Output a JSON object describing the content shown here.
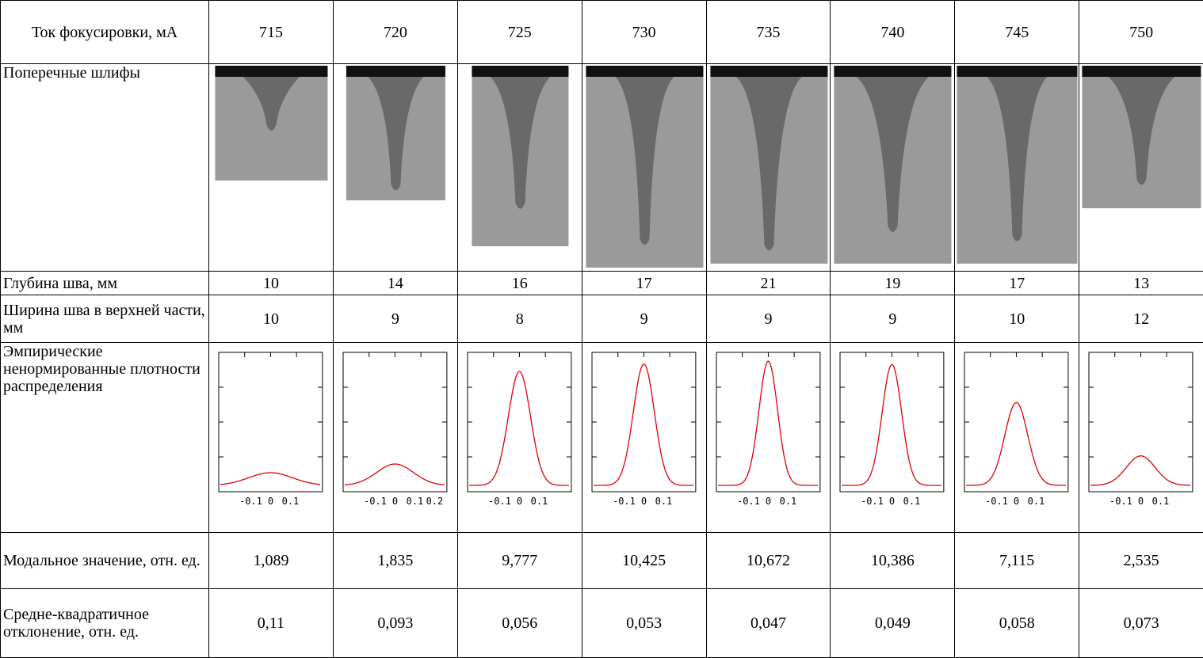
{
  "table": {
    "header_label": "Ток фокусировки, мА",
    "currents": [
      715,
      720,
      725,
      730,
      735,
      740,
      745,
      750
    ],
    "sections_label": "Поперечные шлифы",
    "depth": {
      "label": "Глубина шва, мм",
      "values": [
        10,
        14,
        16,
        17,
        21,
        19,
        17,
        13
      ]
    },
    "width": {
      "label": "Ширина шва в верхней части, мм",
      "values": [
        10,
        9,
        8,
        9,
        9,
        9,
        10,
        12
      ]
    },
    "densities": {
      "label": "Эмпирические ненормированные плотности распределения",
      "xticks": [
        [
          "-0.1",
          "0",
          "0.1"
        ],
        [
          "-0.1",
          "0",
          "0.1",
          "0.2"
        ],
        [
          "-0.1",
          "0",
          "0.1"
        ],
        [
          "-0.1",
          "0",
          "0.1"
        ],
        [
          "-0.1",
          "0",
          "0.1"
        ],
        [
          "-0.1",
          "0",
          "0.1"
        ],
        [
          "-0.1",
          "0",
          "0.1"
        ],
        [
          "-0.1",
          "0",
          "0.1"
        ]
      ]
    },
    "modal": {
      "label": "Модальное значение, отн. ед.",
      "values": [
        "1,089",
        "1,835",
        "9,777",
        "10,425",
        "10,672",
        "10,386",
        "7,115",
        "2,535"
      ]
    },
    "sd": {
      "label": "Средне-квадратичное отклонение, отн. ед.",
      "values": [
        "0,11",
        "0,093",
        "0,056",
        "0,053",
        "0,047",
        "0,049",
        "0,058",
        "0,073"
      ]
    }
  }
}
